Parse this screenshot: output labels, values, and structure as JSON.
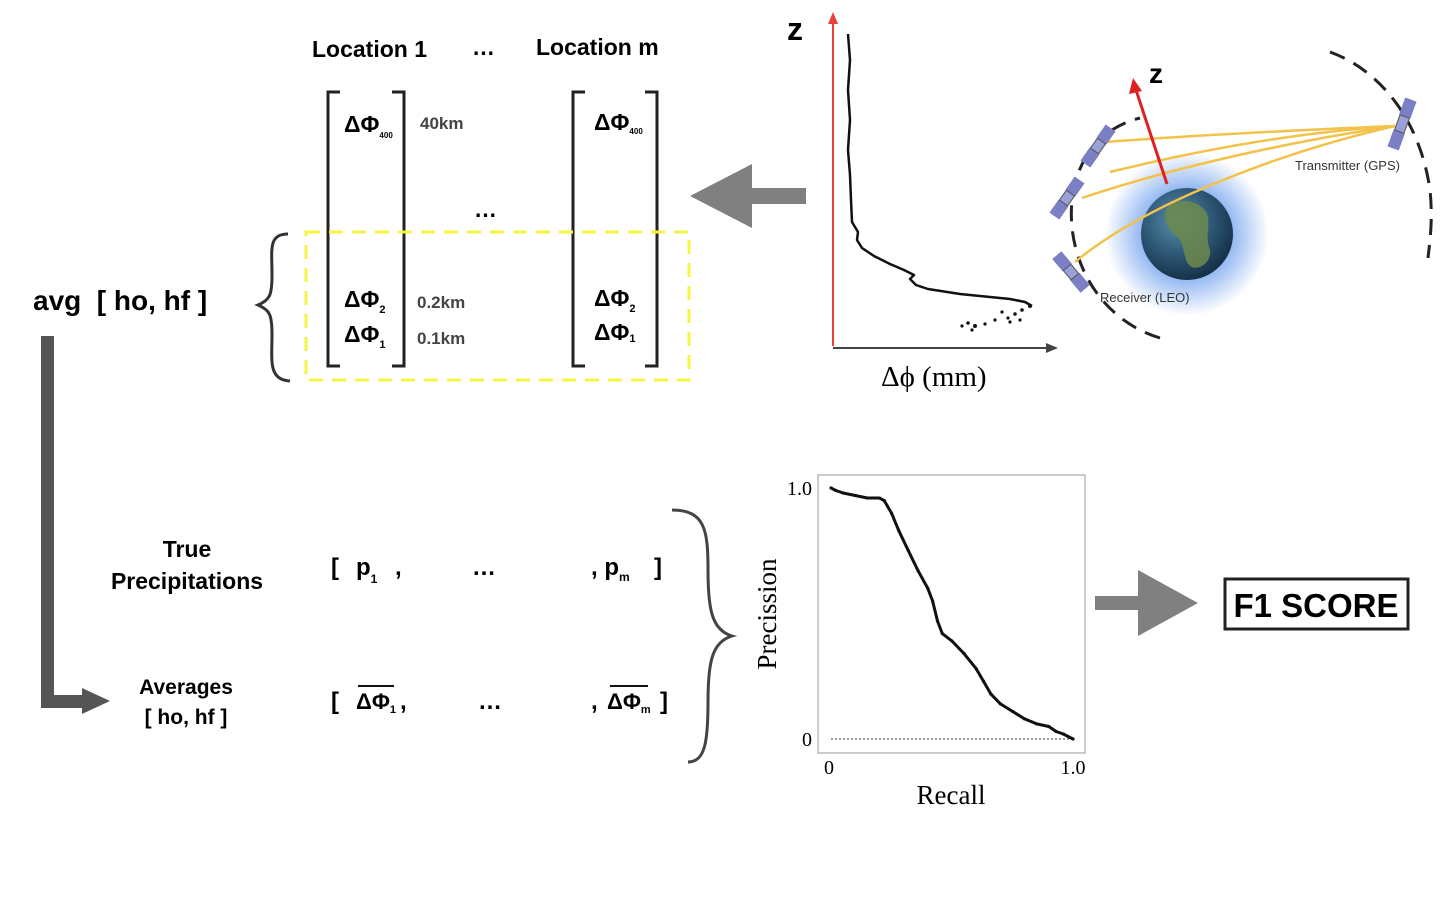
{
  "matrix": {
    "location_first": "Location 1",
    "location_last": "Location m",
    "header_ellipsis": "…",
    "middle_ellipsis": "…",
    "delta_symbol": "ΔΦ",
    "sub_400": "400",
    "sub_2": "2",
    "sub_1": "1",
    "height_top": "40km",
    "height_mid": "0.2km",
    "height_bottom": "0.1km"
  },
  "avg_label": "avg  [ ho, hf ]",
  "profile_plot": {
    "z_label": "z",
    "x_label": "Δϕ (mm)"
  },
  "orbit": {
    "z_label": "z",
    "transmitter_label": "Transmitter (GPS)",
    "receiver_label": "Receiver (LEO)"
  },
  "vectors": {
    "true_label_line1": "True",
    "true_label_line2": "Precipitations",
    "true_open": "[",
    "true_first": "p",
    "true_first_sub": "1",
    "true_comma": ",",
    "true_ellipsis": "…",
    "true_last_prefix": ", p",
    "true_last_sub": "m",
    "true_close": "]",
    "avg_label_line1": "Averages",
    "avg_label_line2": "[ ho, hf ]",
    "avg_open": "[",
    "avg_first": "ΔΦ",
    "avg_first_sub": "1",
    "avg_comma": ",",
    "avg_ellipsis": "…",
    "avg_last_prefix": ",",
    "avg_last": "ΔΦ",
    "avg_last_sub": "m",
    "avg_close": "]"
  },
  "chart_data": {
    "type": "line",
    "title": "",
    "xlabel": "Recall",
    "ylabel": "Precission",
    "xlim": [
      0,
      1.0
    ],
    "ylim": [
      0,
      1.0
    ],
    "x_ticks": [
      "0",
      "1.0"
    ],
    "y_ticks": [
      "0",
      "1.0"
    ],
    "grid": false,
    "series": [
      {
        "x": [
          0.0,
          0.02,
          0.05,
          0.1,
          0.15,
          0.2,
          0.22,
          0.25,
          0.28,
          0.32,
          0.36,
          0.4,
          0.42,
          0.44,
          0.46,
          0.5,
          0.55,
          0.6,
          0.63,
          0.66,
          0.7,
          0.75,
          0.8,
          0.85,
          0.9,
          0.93,
          0.96,
          1.0
        ],
        "y": [
          1.0,
          0.99,
          0.98,
          0.97,
          0.96,
          0.96,
          0.95,
          0.9,
          0.83,
          0.75,
          0.67,
          0.6,
          0.55,
          0.47,
          0.42,
          0.39,
          0.34,
          0.28,
          0.23,
          0.18,
          0.14,
          0.11,
          0.08,
          0.06,
          0.05,
          0.03,
          0.02,
          0.0
        ]
      }
    ],
    "baseline_y": 0.0
  },
  "result_label": "F1 SCORE",
  "colors": {
    "arrow_gray": "#808080",
    "dark_arrow": "#555555",
    "dashed_box": "#f5f542",
    "axis_red": "#e8413c",
    "orbit_beam": "#f2c24a",
    "satellite": "#7b7fc4",
    "earth_glow": "#4a88e8"
  }
}
